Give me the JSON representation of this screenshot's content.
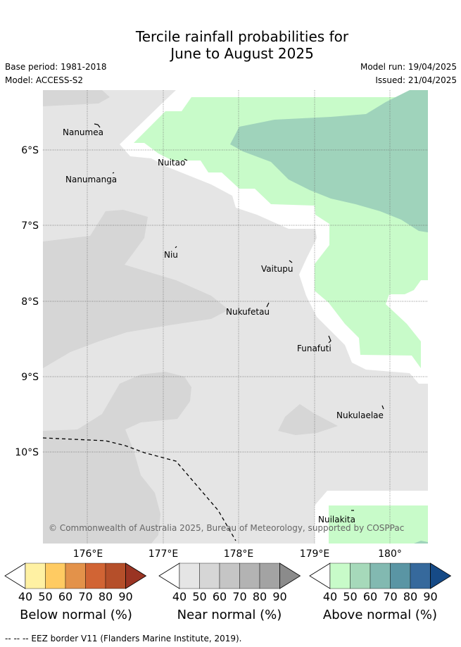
{
  "header": {
    "title_line1": "Tercile rainfall probabilities for",
    "title_line2": "June to August 2025",
    "base_period": "Base period: 1981-2018",
    "model": "Model: ACCESS-S2",
    "model_run": "Model run: 19/04/2025",
    "issued": "Issued: 21/04/2025"
  },
  "map": {
    "lat_labels": [
      "6°S",
      "7°S",
      "8°S",
      "9°S",
      "10°S"
    ],
    "lon_labels": [
      "176°E",
      "177°E",
      "178°E",
      "179°E",
      "180°"
    ],
    "places": [
      "Nanumea",
      "Nuitao",
      "Nanumanga",
      "Niu",
      "Vaitupu",
      "Nukufetau",
      "Funafuti",
      "Nukulaelae",
      "Nuilakita"
    ],
    "copyright": "© Commonwealth of Australia 2025, Bureau of Meteorology, supported by COSPPac",
    "colors": {
      "background": "#e5e5e5",
      "near_50": "#d6d6d6",
      "above_40": "#c8fbc9",
      "above_50": "#9fd3bb",
      "gap": "#ffffff"
    }
  },
  "colorbars": [
    {
      "label": "Below normal (%)",
      "ticks": [
        "40",
        "50",
        "60",
        "70",
        "80",
        "90"
      ],
      "colors": [
        "#ffffff",
        "#fff1a3",
        "#ffcb62",
        "#e3924a",
        "#d16434",
        "#b54f2a",
        "#9a3423"
      ]
    },
    {
      "label": "Near normal (%)",
      "ticks": [
        "40",
        "50",
        "60",
        "70",
        "80",
        "90"
      ],
      "colors": [
        "#ffffff",
        "#e5e5e5",
        "#d6d6d6",
        "#c5c5c5",
        "#b3b3b3",
        "#a3a3a3",
        "#8b8b8b"
      ]
    },
    {
      "label": "Above normal (%)",
      "ticks": [
        "40",
        "50",
        "60",
        "70",
        "80",
        "90"
      ],
      "colors": [
        "#ffffff",
        "#c8fbc9",
        "#a6d9ba",
        "#82b9b1",
        "#5a95a4",
        "#36699c",
        "#164a86"
      ]
    }
  ],
  "footnote": "--  --  -- EEZ border V11 (Flanders Marine Institute, 2019)."
}
